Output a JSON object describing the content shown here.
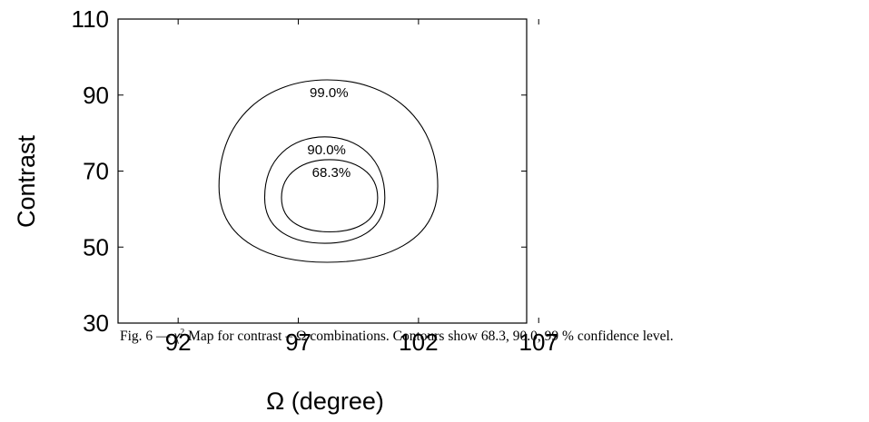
{
  "chart_data": {
    "type": "contour",
    "xlabel": "Ω (degree)",
    "ylabel": "Contrast",
    "xlim": [
      89.5,
      106.5
    ],
    "ylim": [
      30,
      110
    ],
    "xticks": [
      92,
      97,
      102,
      107
    ],
    "yticks": [
      30,
      50,
      70,
      90,
      110
    ],
    "grid": false,
    "contours": [
      {
        "label": "99.0%",
        "omega_min": 93.7,
        "omega_max": 102.8,
        "contrast_min": 46.0,
        "contrast_max": 94.0,
        "center": [
          98.2,
          66
        ]
      },
      {
        "label": "90.0%",
        "omega_min": 95.6,
        "omega_max": 100.6,
        "contrast_min": 51.0,
        "contrast_max": 79.0,
        "center": [
          98.1,
          63
        ]
      },
      {
        "label": "68.3%",
        "omega_min": 96.3,
        "omega_max": 100.3,
        "contrast_min": 54.0,
        "contrast_max": 73.0,
        "center": [
          98.3,
          63
        ]
      }
    ]
  },
  "caption": {
    "prefix": "Fig. 6 — ",
    "chi": "χ",
    "sup": "2",
    "rest": " Map for contrast – Ω combinations. Contours show 68.3, 90.0, 99 % confidence level."
  }
}
